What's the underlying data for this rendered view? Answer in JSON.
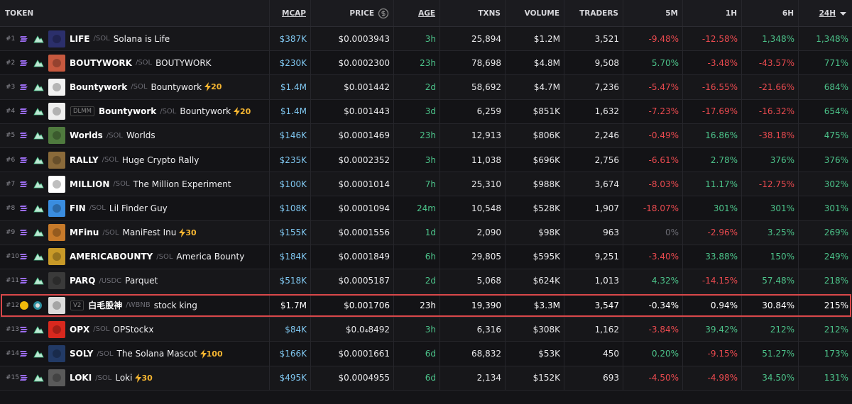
{
  "header": {
    "columns": [
      "TOKEN",
      "MCAP",
      "PRICE",
      "AGE",
      "TXNS",
      "VOLUME",
      "TRADERS",
      "5M",
      "1H",
      "6H",
      "24H"
    ]
  },
  "rows": [
    {
      "rank": "#1",
      "symbol": "LIFE",
      "quote": "/SOL",
      "name": "Solana is Life",
      "mcap": "$387K",
      "price": "$0.0003943",
      "age": "3h",
      "txns": "25,894",
      "volume": "$1.2M",
      "traders": "3,521",
      "m5": "-9.48%",
      "h1": "-12.58%",
      "h6": "1,348%",
      "h24": "1,348%"
    },
    {
      "rank": "#2",
      "symbol": "BOUTYWORK",
      "quote": "/SOL",
      "name": "BOUTYWORK",
      "mcap": "$230K",
      "price": "$0.0002300",
      "age": "23h",
      "txns": "78,698",
      "volume": "$4.8M",
      "traders": "9,508",
      "m5": "5.70%",
      "h1": "-3.48%",
      "h6": "-43.57%",
      "h24": "771%"
    },
    {
      "rank": "#3",
      "symbol": "Bountywork",
      "quote": "/SOL",
      "name": "Bountywork",
      "boost": "20",
      "mcap": "$1.4M",
      "price": "$0.001442",
      "age": "2d",
      "txns": "58,692",
      "volume": "$4.7M",
      "traders": "7,236",
      "m5": "-5.47%",
      "h1": "-16.55%",
      "h6": "-21.66%",
      "h24": "684%"
    },
    {
      "rank": "#4",
      "dex": "DLMM",
      "symbol": "Bountywork",
      "quote": "/SOL",
      "name": "Bountywork",
      "boost": "20",
      "mcap": "$1.4M",
      "price": "$0.001443",
      "age": "3d",
      "txns": "6,259",
      "volume": "$851K",
      "traders": "1,632",
      "m5": "-7.23%",
      "h1": "-17.69%",
      "h6": "-16.32%",
      "h24": "654%"
    },
    {
      "rank": "#5",
      "symbol": "Worlds",
      "quote": "/SOL",
      "name": "Worlds",
      "mcap": "$146K",
      "price": "$0.0001469",
      "age": "23h",
      "txns": "12,913",
      "volume": "$806K",
      "traders": "2,246",
      "m5": "-0.49%",
      "h1": "16.86%",
      "h6": "-38.18%",
      "h24": "475%"
    },
    {
      "rank": "#6",
      "symbol": "RALLY",
      "quote": "/SOL",
      "name": "Huge Crypto Rally",
      "mcap": "$235K",
      "price": "$0.0002352",
      "age": "3h",
      "txns": "11,038",
      "volume": "$696K",
      "traders": "2,756",
      "m5": "-6.61%",
      "h1": "2.78%",
      "h6": "376%",
      "h24": "376%"
    },
    {
      "rank": "#7",
      "symbol": "MILLION",
      "quote": "/SOL",
      "name": "The Million Experiment",
      "mcap": "$100K",
      "price": "$0.0001014",
      "age": "7h",
      "txns": "25,310",
      "volume": "$988K",
      "traders": "3,674",
      "m5": "-8.03%",
      "h1": "11.17%",
      "h6": "-12.75%",
      "h24": "302%"
    },
    {
      "rank": "#8",
      "symbol": "FIN",
      "quote": "/SOL",
      "name": "Lil Finder Guy",
      "mcap": "$108K",
      "price": "$0.0001094",
      "age": "24m",
      "txns": "10,548",
      "volume": "$528K",
      "traders": "1,907",
      "m5": "-18.07%",
      "h1": "301%",
      "h6": "301%",
      "h24": "301%"
    },
    {
      "rank": "#9",
      "symbol": "MFinu",
      "quote": "/SOL",
      "name": "ManiFest Inu",
      "boost": "30",
      "mcap": "$155K",
      "price": "$0.0001556",
      "age": "1d",
      "txns": "2,090",
      "volume": "$98K",
      "traders": "963",
      "m5": "0%",
      "h1": "-2.96%",
      "h6": "3.25%",
      "h24": "269%"
    },
    {
      "rank": "#10",
      "symbol": "AMERICABOUNTY",
      "quote": "/SOL",
      "name": "America Bounty",
      "mcap": "$184K",
      "price": "$0.0001849",
      "age": "6h",
      "txns": "29,805",
      "volume": "$595K",
      "traders": "9,251",
      "m5": "-3.40%",
      "h1": "33.88%",
      "h6": "150%",
      "h24": "249%"
    },
    {
      "rank": "#11",
      "symbol": "PARQ",
      "quote": "/USDC",
      "name": "Parquet",
      "mcap": "$518K",
      "price": "$0.0005187",
      "age": "2d",
      "txns": "5,068",
      "volume": "$624K",
      "traders": "1,013",
      "m5": "4.32%",
      "h1": "-14.15%",
      "h6": "57.48%",
      "h24": "218%"
    },
    {
      "rank": "#12",
      "dex": "V2",
      "symbol": "白毛股神",
      "quote": "/WBNB",
      "name": "stock king",
      "highlighted": true,
      "mcap": "$1.7M",
      "price": "$0.001706",
      "age": "23h",
      "txns": "19,390",
      "volume": "$3.3M",
      "traders": "3,547",
      "m5": "-0.34%",
      "h1": "0.94%",
      "h6": "30.84%",
      "h24": "215%"
    },
    {
      "rank": "#13",
      "symbol": "OPX",
      "quote": "/SOL",
      "name": "OPStockx",
      "mcap": "$84K",
      "price": "$0.0₄8492",
      "age": "3h",
      "txns": "6,316",
      "volume": "$308K",
      "traders": "1,162",
      "m5": "-3.84%",
      "h1": "39.42%",
      "h6": "212%",
      "h24": "212%"
    },
    {
      "rank": "#14",
      "symbol": "SOLY",
      "quote": "/SOL",
      "name": "The Solana Mascot",
      "boost": "100",
      "mcap": "$166K",
      "price": "$0.0001661",
      "age": "6d",
      "txns": "68,832",
      "volume": "$53K",
      "traders": "450",
      "m5": "0.20%",
      "h1": "-9.15%",
      "h6": "51.27%",
      "h24": "173%"
    },
    {
      "rank": "#15",
      "symbol": "LOKI",
      "quote": "/SOL",
      "name": "Loki",
      "boost": "30",
      "mcap": "$495K",
      "price": "$0.0004955",
      "age": "6d",
      "txns": "2,134",
      "volume": "$152K",
      "traders": "693",
      "m5": "-4.50%",
      "h1": "-4.98%",
      "h6": "34.50%",
      "h24": "131%"
    }
  ]
}
